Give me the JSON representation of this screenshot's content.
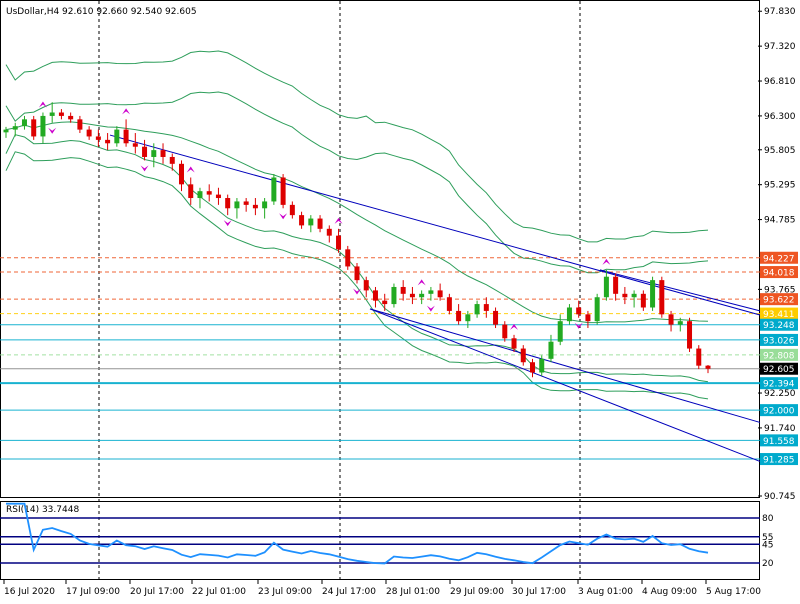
{
  "header": {
    "symbol": "UsDollar,H4",
    "ohlc": "92.610 92.660 92.540 92.605"
  },
  "rsi_panel": {
    "label": "RSI(14) 33.7448",
    "levels": [
      "80",
      "55",
      "45",
      "20"
    ]
  },
  "colors": {
    "bull": "#22aa22",
    "bear": "#dd0000",
    "bands": "#2e9e5b",
    "channel": "#0000bb",
    "support": "#00aacc",
    "resistance": "#dd5522",
    "fractal": "#cc00cc",
    "rsi": "#1e90ff"
  },
  "chart_data": {
    "type": "candlestick",
    "y_range": [
      90.745,
      97.965
    ],
    "x_tick_labels": [
      "16 Jul 2020",
      "17 Jul 09:00",
      "20 Jul 17:00",
      "22 Jul 01:00",
      "23 Jul 09:00",
      "24 Jul 17:00",
      "28 Jul 01:00",
      "29 Jul 09:00",
      "30 Jul 17:00",
      "3 Aug 01:00",
      "4 Aug 09:00",
      "5 Aug 17:00"
    ],
    "y_tick_labels": [
      "97.830",
      "97.320",
      "96.810",
      "96.300",
      "95.805",
      "95.295",
      "94.785",
      "93.765",
      "92.250",
      "91.740",
      "90.745"
    ],
    "level_labels": [
      {
        "text": "94.227",
        "value": 94.227,
        "color": "#ee5522"
      },
      {
        "text": "94.018",
        "value": 94.018,
        "color": "#ee5522"
      },
      {
        "text": "93.622",
        "value": 93.622,
        "color": "#ee5522"
      },
      {
        "text": "93.411",
        "value": 93.411,
        "color": "#ffcc00"
      },
      {
        "text": "93.248",
        "value": 93.248,
        "color": "#00aacc"
      },
      {
        "text": "93.026",
        "value": 93.026,
        "color": "#00aacc"
      },
      {
        "text": "92.808",
        "value": 92.808,
        "color": "#99dd99"
      },
      {
        "text": "92.605",
        "value": 92.605,
        "color": "#000000"
      },
      {
        "text": "92.394",
        "value": 92.394,
        "color": "#00aacc"
      },
      {
        "text": "92.000",
        "value": 92.0,
        "color": "#00aacc"
      },
      {
        "text": "91.558",
        "value": 91.558,
        "color": "#00aacc"
      },
      {
        "text": "91.285",
        "value": 91.285,
        "color": "#00aacc"
      }
    ],
    "candles": [
      [
        96.06,
        96.14,
        95.98,
        96.1
      ],
      [
        96.1,
        96.2,
        96.0,
        96.15
      ],
      [
        96.15,
        96.3,
        96.1,
        96.25
      ],
      [
        96.25,
        96.3,
        95.95,
        96.0
      ],
      [
        96.0,
        96.35,
        95.9,
        96.3
      ],
      [
        96.3,
        96.5,
        96.2,
        96.35
      ],
      [
        96.35,
        96.4,
        96.25,
        96.3
      ],
      [
        96.3,
        96.35,
        96.2,
        96.25
      ],
      [
        96.25,
        96.3,
        96.05,
        96.1
      ],
      [
        96.1,
        96.15,
        95.95,
        96.0
      ],
      [
        96.0,
        96.1,
        95.85,
        95.95
      ],
      [
        95.95,
        96.05,
        95.8,
        95.9
      ],
      [
        95.9,
        96.15,
        95.85,
        96.1
      ],
      [
        96.1,
        96.25,
        95.85,
        95.9
      ],
      [
        95.9,
        96.05,
        95.75,
        95.85
      ],
      [
        95.85,
        95.95,
        95.65,
        95.7
      ],
      [
        95.7,
        95.9,
        95.55,
        95.8
      ],
      [
        95.8,
        95.9,
        95.6,
        95.7
      ],
      [
        95.7,
        95.75,
        95.5,
        95.6
      ],
      [
        95.6,
        95.65,
        95.2,
        95.3
      ],
      [
        95.3,
        95.4,
        95.0,
        95.1
      ],
      [
        95.1,
        95.25,
        94.95,
        95.2
      ],
      [
        95.2,
        95.3,
        95.05,
        95.15
      ],
      [
        95.15,
        95.25,
        95.0,
        95.1
      ],
      [
        95.1,
        95.15,
        94.85,
        94.95
      ],
      [
        94.95,
        95.1,
        94.8,
        95.05
      ],
      [
        95.05,
        95.1,
        94.9,
        95.0
      ],
      [
        95.0,
        95.1,
        94.85,
        94.95
      ],
      [
        94.95,
        95.1,
        94.8,
        95.05
      ],
      [
        95.05,
        95.45,
        95.0,
        95.4
      ],
      [
        95.4,
        95.45,
        94.95,
        95.0
      ],
      [
        95.0,
        95.05,
        94.8,
        94.85
      ],
      [
        94.85,
        94.9,
        94.65,
        94.7
      ],
      [
        94.7,
        94.85,
        94.6,
        94.8
      ],
      [
        94.8,
        94.85,
        94.6,
        94.65
      ],
      [
        94.65,
        94.7,
        94.45,
        94.55
      ],
      [
        94.55,
        94.65,
        94.3,
        94.35
      ],
      [
        94.35,
        94.4,
        94.05,
        94.1
      ],
      [
        94.1,
        94.15,
        93.85,
        93.9
      ],
      [
        93.9,
        93.95,
        93.65,
        93.75
      ],
      [
        93.75,
        93.8,
        93.5,
        93.6
      ],
      [
        93.6,
        93.7,
        93.45,
        93.55
      ],
      [
        93.55,
        93.85,
        93.5,
        93.8
      ],
      [
        93.8,
        93.9,
        93.6,
        93.7
      ],
      [
        93.7,
        93.8,
        93.55,
        93.65
      ],
      [
        93.65,
        93.75,
        93.55,
        93.7
      ],
      [
        93.7,
        93.8,
        93.6,
        93.75
      ],
      [
        93.75,
        93.85,
        93.6,
        93.65
      ],
      [
        93.65,
        93.7,
        93.4,
        93.45
      ],
      [
        93.45,
        93.55,
        93.25,
        93.3
      ],
      [
        93.3,
        93.45,
        93.2,
        93.4
      ],
      [
        93.4,
        93.6,
        93.35,
        93.55
      ],
      [
        93.55,
        93.65,
        93.35,
        93.45
      ],
      [
        93.45,
        93.5,
        93.2,
        93.25
      ],
      [
        93.25,
        93.3,
        93.0,
        93.05
      ],
      [
        93.05,
        93.1,
        92.85,
        92.9
      ],
      [
        92.9,
        92.95,
        92.65,
        92.7
      ],
      [
        92.7,
        92.75,
        92.48,
        92.55
      ],
      [
        92.55,
        92.8,
        92.5,
        92.75
      ],
      [
        92.75,
        93.1,
        92.7,
        93.0
      ],
      [
        93.0,
        93.4,
        92.95,
        93.3
      ],
      [
        93.3,
        93.55,
        93.25,
        93.5
      ],
      [
        93.5,
        93.6,
        93.35,
        93.4
      ],
      [
        93.4,
        93.45,
        93.2,
        93.3
      ],
      [
        93.3,
        93.7,
        93.25,
        93.65
      ],
      [
        93.65,
        94.05,
        93.6,
        93.95
      ],
      [
        93.95,
        94.0,
        93.6,
        93.7
      ],
      [
        93.7,
        93.8,
        93.55,
        93.65
      ],
      [
        93.65,
        93.75,
        93.5,
        93.7
      ],
      [
        93.7,
        93.75,
        93.45,
        93.5
      ],
      [
        93.5,
        93.95,
        93.45,
        93.9
      ],
      [
        93.9,
        93.95,
        93.35,
        93.4
      ],
      [
        93.4,
        93.45,
        93.15,
        93.25
      ],
      [
        93.25,
        93.35,
        93.15,
        93.3
      ],
      [
        93.3,
        93.35,
        92.85,
        92.9
      ],
      [
        92.9,
        92.95,
        92.6,
        92.65
      ],
      [
        92.65,
        92.66,
        92.54,
        92.605
      ]
    ],
    "rsi": {
      "ylim": [
        0,
        100
      ],
      "levels": [
        80,
        55,
        45,
        20
      ],
      "last": 33.7448
    }
  }
}
